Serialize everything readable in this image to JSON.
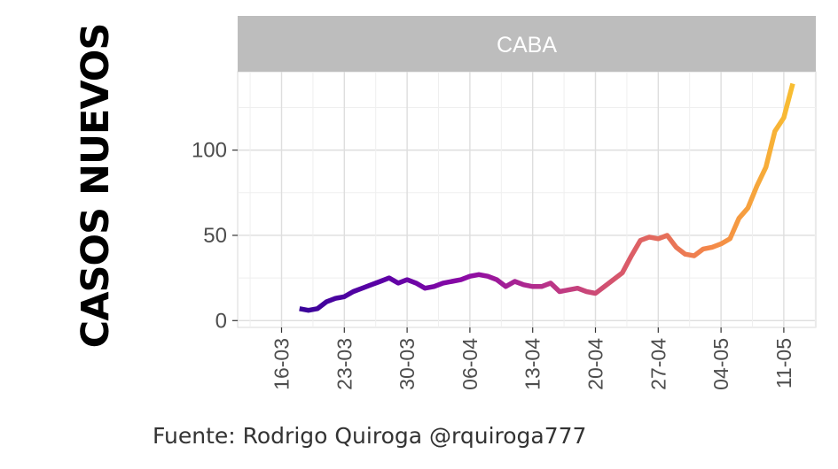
{
  "chart_data": {
    "type": "line",
    "title": "",
    "facet_label": "CABA",
    "xlabel": "",
    "ylabel": "CASOS NUEVOS",
    "x_tick_labels": [
      "16-03",
      "23-03",
      "30-03",
      "06-04",
      "13-04",
      "20-04",
      "27-04",
      "04-05",
      "11-05"
    ],
    "y_ticks": [
      0,
      50,
      100
    ],
    "ylim": [
      -4,
      146
    ],
    "grid": true,
    "legend": "none",
    "color_scale": [
      "#3a049a",
      "#5c01a6",
      "#8b0aa5",
      "#b83289",
      "#db5c68",
      "#f48849",
      "#f8be32"
    ],
    "series": [
      {
        "x": [
          "2020-03-18",
          "2020-03-19",
          "2020-03-20",
          "2020-03-21",
          "2020-03-22",
          "2020-03-23",
          "2020-03-24",
          "2020-03-25",
          "2020-03-26",
          "2020-03-27",
          "2020-03-28",
          "2020-03-29",
          "2020-03-30",
          "2020-03-31",
          "2020-04-01",
          "2020-04-02",
          "2020-04-03",
          "2020-04-04",
          "2020-04-05",
          "2020-04-06",
          "2020-04-07",
          "2020-04-08",
          "2020-04-09",
          "2020-04-10",
          "2020-04-11",
          "2020-04-12",
          "2020-04-13",
          "2020-04-14",
          "2020-04-15",
          "2020-04-16",
          "2020-04-17",
          "2020-04-18",
          "2020-04-19",
          "2020-04-20",
          "2020-04-21",
          "2020-04-22",
          "2020-04-23",
          "2020-04-24",
          "2020-04-25",
          "2020-04-26",
          "2020-04-27",
          "2020-04-28",
          "2020-04-29",
          "2020-04-30",
          "2020-05-01",
          "2020-05-02",
          "2020-05-03",
          "2020-05-04",
          "2020-05-05",
          "2020-05-06",
          "2020-05-07",
          "2020-05-08",
          "2020-05-09",
          "2020-05-10",
          "2020-05-11",
          "2020-05-12"
        ],
        "y": [
          7,
          6,
          7,
          11,
          13,
          14,
          17,
          19,
          21,
          23,
          25,
          22,
          24,
          22,
          19,
          20,
          22,
          23,
          24,
          26,
          27,
          26,
          24,
          20,
          23,
          21,
          20,
          20,
          22,
          17,
          18,
          19,
          17,
          16,
          20,
          24,
          28,
          38,
          47,
          49,
          48,
          50,
          43,
          39,
          38,
          42,
          43,
          45,
          48,
          60,
          66,
          79,
          90,
          111,
          119,
          139
        ]
      }
    ]
  },
  "source_note": "Fuente: Rodrigo Quiroga @rquiroga777"
}
